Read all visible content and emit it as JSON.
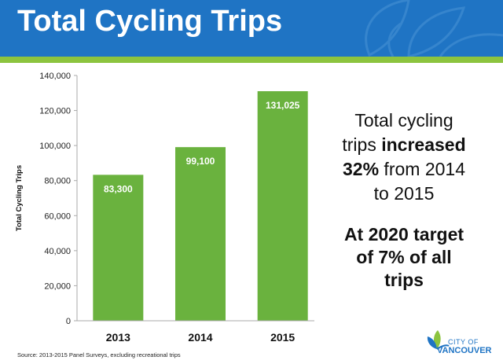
{
  "header": {
    "title": "Total Cycling Trips"
  },
  "chart_data": {
    "type": "bar",
    "title": "",
    "xlabel": "",
    "ylabel": "Total Cycling Trips",
    "categories": [
      "2013",
      "2014",
      "2015"
    ],
    "values": [
      83300,
      99100,
      131025
    ],
    "data_labels": [
      "83,300",
      "99,100",
      "131,025"
    ],
    "ylim": [
      0,
      140000
    ],
    "yticks": [
      0,
      20000,
      40000,
      60000,
      80000,
      100000,
      120000,
      140000
    ],
    "ytick_labels": [
      "0",
      "20,000",
      "40,000",
      "60,000",
      "80,000",
      "100,000",
      "120,000",
      "140,000"
    ],
    "grid": false,
    "legend": "none",
    "bar_color": "#6ab23e",
    "data_label_color": "#ffffff"
  },
  "callout": {
    "line1": "Total cycling",
    "line2_prefix": "trips ",
    "line2_bold": "increased",
    "line3_bold": "32%",
    "line3_suffix": " from 2014",
    "line4": "to 2015",
    "target_line1": "At 2020 target",
    "target_line2": "of 7% of all",
    "target_line3": "trips"
  },
  "footer": {
    "source": "Source: 2013-2015 Panel Surveys, excluding recreational trips"
  },
  "logo": {
    "city": "CITY OF",
    "name": "VANCOUVER",
    "icon": "city-of-vancouver-leaf-icon"
  },
  "colors": {
    "banner": "#1f74c4",
    "accent": "#8cc43f",
    "bar": "#6ab23e",
    "text": "#111111"
  }
}
